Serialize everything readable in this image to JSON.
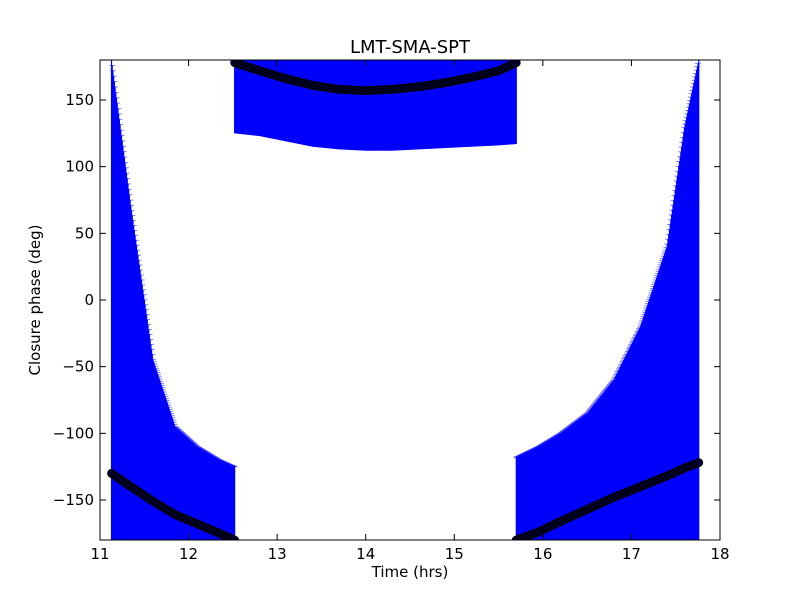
{
  "chart_data": {
    "type": "scatter",
    "title": "LMT-SMA-SPT",
    "xlabel": "Time (hrs)",
    "ylabel": "Closure phase (deg)",
    "xlim": [
      11,
      18
    ],
    "ylim": [
      -180,
      180
    ],
    "xticks": [
      11,
      12,
      13,
      14,
      15,
      16,
      17,
      18
    ],
    "xtick_labels": [
      "11",
      "12",
      "13",
      "14",
      "15",
      "16",
      "17",
      "18"
    ],
    "yticks": [
      -150,
      -100,
      -50,
      0,
      50,
      100,
      150
    ],
    "ytick_labels": [
      "−150",
      "−100",
      "−50",
      "0",
      "50",
      "100",
      "150"
    ],
    "grid": false,
    "colors": {
      "errorbar": "#0000ff",
      "marker": "#000033",
      "axes": "#000000"
    },
    "series": [
      {
        "segment": "left",
        "x": [
          11.13,
          11.35,
          11.6,
          11.85,
          12.1,
          12.35,
          12.52
        ],
        "y": [
          -130,
          -140,
          -151,
          -161,
          -168,
          -175,
          -180
        ],
        "ylower": [
          -180,
          -180,
          -180,
          -180,
          -180,
          -180,
          -180
        ],
        "yupper": [
          180,
          70,
          -45,
          -95,
          -110,
          -120,
          -125
        ]
      },
      {
        "segment": "top",
        "x": [
          12.52,
          12.8,
          13.1,
          13.4,
          13.7,
          14.0,
          14.3,
          14.6,
          14.9,
          15.2,
          15.5,
          15.7
        ],
        "y": [
          178,
          172,
          166,
          161,
          158,
          157,
          158,
          160,
          163,
          167,
          172,
          178
        ],
        "ylower": [
          125,
          123,
          119,
          115,
          113,
          112,
          112,
          113,
          114,
          115,
          116,
          117
        ],
        "yupper": [
          180,
          180,
          180,
          180,
          180,
          180,
          180,
          180,
          180,
          180,
          180,
          180
        ]
      },
      {
        "segment": "right",
        "x": [
          15.7,
          15.95,
          16.2,
          16.5,
          16.8,
          17.1,
          17.4,
          17.6,
          17.76
        ],
        "y": [
          -180,
          -174,
          -166,
          -157,
          -148,
          -140,
          -132,
          -126,
          -122
        ],
        "ylower": [
          -180,
          -180,
          -180,
          -180,
          -180,
          -180,
          -180,
          -180,
          -180
        ],
        "yupper": [
          -118,
          -110,
          -100,
          -85,
          -60,
          -20,
          40,
          130,
          180
        ]
      }
    ]
  }
}
